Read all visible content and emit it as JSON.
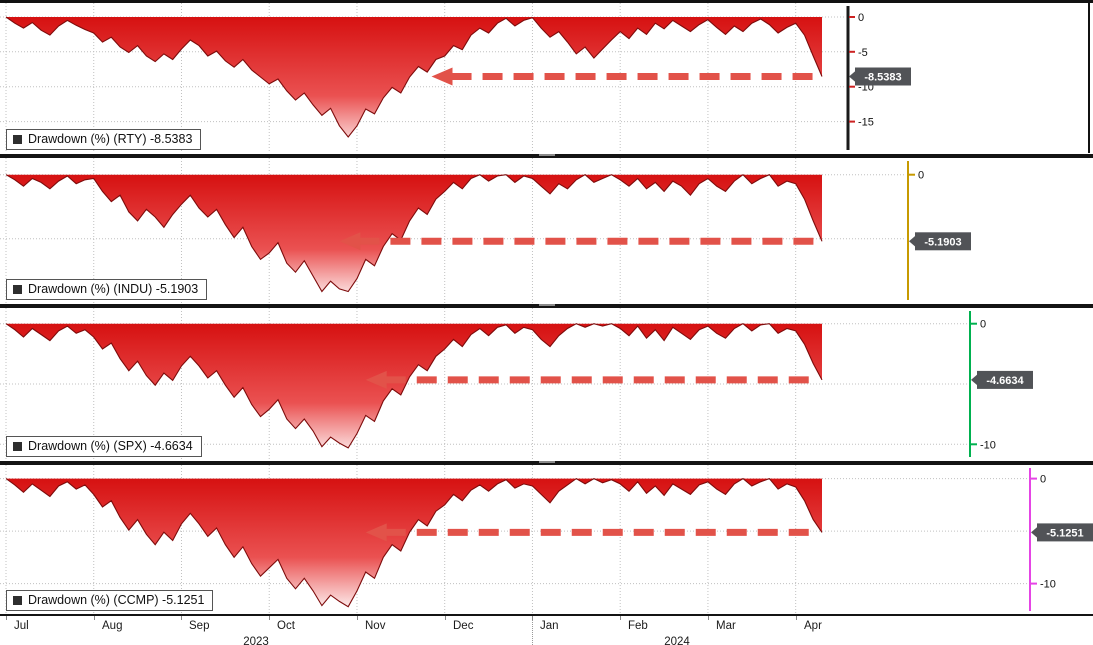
{
  "colors": {
    "area_top": "#d61111",
    "area_mid": "#ea5151",
    "area_bottom": "#ffffff",
    "line": "#7d0b0b",
    "arrow": "#e25249",
    "badge_bg": "#515357",
    "grid": "#c0c0c0"
  },
  "x_axis": {
    "months": [
      "Jul",
      "Aug",
      "Sep",
      "Oct",
      "Nov",
      "Dec",
      "Jan",
      "Feb",
      "Mar",
      "Apr"
    ],
    "years": [
      "2023",
      "2024"
    ]
  },
  "chart_data": [
    {
      "type": "area",
      "series_id": "RTY",
      "legend": "Drawdown (%) (RTY) -8.5383",
      "badge": "-8.5383",
      "last_value": -8.5383,
      "ylim": [
        -19.5,
        2.0
      ],
      "ticks": [
        0,
        -5,
        -10,
        -15
      ],
      "grid": [
        0,
        -5,
        -10,
        -15
      ],
      "axis_color": "#1a1a1a",
      "tick_color": "#cc2222",
      "arrow": {
        "level": -8.5383,
        "from_t": 4.85
      },
      "t_range": [
        0,
        9.3
      ],
      "values": [
        0,
        -0.9,
        -1.6,
        -0.8,
        -1.9,
        -2.6,
        -1.3,
        -0.5,
        -1.2,
        -1.8,
        -2.3,
        -3.6,
        -2.9,
        -4.3,
        -5.1,
        -4.1,
        -5.6,
        -6.4,
        -5.3,
        -6.1,
        -4.6,
        -3.3,
        -4.1,
        -5.6,
        -4.9,
        -6.3,
        -7.2,
        -6.1,
        -7.6,
        -8.6,
        -9.6,
        -8.9,
        -10.6,
        -11.9,
        -10.9,
        -12.6,
        -14.1,
        -13.1,
        -15.6,
        -17.2,
        -15.6,
        -13.2,
        -13.9,
        -11.6,
        -10.1,
        -10.9,
        -8.6,
        -7.1,
        -7.9,
        -6.1,
        -5.6,
        -4.1,
        -4.7,
        -2.6,
        -1.6,
        -2.3,
        -0.9,
        -0.2,
        -1.3,
        -0.5,
        -0.1,
        -1.6,
        -2.9,
        -2.1,
        -3.6,
        -5.3,
        -4.3,
        -5.9,
        -4.6,
        -3.3,
        -2.1,
        -3.1,
        -1.6,
        -2.5,
        -0.9,
        -1.7,
        -0.5,
        -1.3,
        -2.1,
        -1.1,
        -0.4,
        -1.5,
        -2.5,
        -1.3,
        -2.1,
        -0.9,
        -0.3,
        -1.1,
        -2.3,
        -1.5,
        -0.9,
        -2.6,
        -5.6,
        -8.5383
      ]
    },
    {
      "type": "area",
      "series_id": "INDU",
      "legend": "Drawdown (%) (INDU) -5.1903",
      "badge": "-5.1903",
      "last_value": -5.1903,
      "ylim": [
        -10.0,
        1.3
      ],
      "ticks": [
        0
      ],
      "grid": [
        0,
        -5
      ],
      "axis_color": "#C79A00",
      "tick_color": "#C79A00",
      "arrow": {
        "level": -5.1903,
        "from_t": 3.8
      },
      "t_range": [
        0,
        9.3
      ],
      "values": [
        0,
        -0.4,
        -0.9,
        -0.3,
        -0.6,
        -1.1,
        -0.5,
        -0.1,
        -0.7,
        -0.4,
        -0.3,
        -1.3,
        -2.1,
        -1.6,
        -2.9,
        -3.6,
        -2.7,
        -3.3,
        -4.1,
        -3.1,
        -2.3,
        -1.6,
        -2.6,
        -3.3,
        -2.7,
        -3.9,
        -4.9,
        -4.1,
        -5.6,
        -6.6,
        -6.1,
        -5.3,
        -6.9,
        -7.6,
        -6.7,
        -7.9,
        -9.1,
        -8.3,
        -8.9,
        -9.1,
        -8.1,
        -6.6,
        -7.1,
        -5.6,
        -4.6,
        -5.1,
        -3.6,
        -2.6,
        -3.1,
        -1.9,
        -1.3,
        -0.6,
        -1.1,
        -0.3,
        0,
        -0.5,
        -0.1,
        0,
        -0.6,
        -0.1,
        -0.3,
        -0.9,
        -1.5,
        -0.7,
        -1.1,
        -0.4,
        0,
        -0.6,
        -0.3,
        0,
        -0.4,
        -0.9,
        -0.3,
        -1.1,
        -0.6,
        -1.3,
        -0.5,
        -0.9,
        -1.6,
        -0.7,
        -0.3,
        -0.9,
        -1.3,
        -0.5,
        0,
        -0.7,
        -0.3,
        0,
        -0.9,
        -0.5,
        -0.7,
        -1.9,
        -3.6,
        -5.1903
      ]
    },
    {
      "type": "area",
      "series_id": "SPX",
      "legend": "Drawdown (%) (SPX) -4.6634",
      "badge": "-4.6634",
      "last_value": -4.6634,
      "ylim": [
        -11.3,
        1.3
      ],
      "ticks": [
        0,
        -10
      ],
      "grid": [
        0,
        -5,
        -10
      ],
      "axis_color": "#00B14F",
      "tick_color": "#00B14F",
      "arrow": {
        "level": -4.6634,
        "from_t": 4.1
      },
      "t_range": [
        0,
        9.3
      ],
      "values": [
        0,
        -0.5,
        -1.1,
        -0.4,
        -0.9,
        -1.4,
        -0.6,
        -0.2,
        -0.8,
        -0.5,
        -1.1,
        -2.1,
        -1.6,
        -2.9,
        -3.9,
        -3.1,
        -4.3,
        -5.1,
        -4.1,
        -4.7,
        -3.5,
        -2.7,
        -3.5,
        -4.5,
        -3.9,
        -5.1,
        -6.1,
        -5.3,
        -6.7,
        -7.7,
        -7.1,
        -6.3,
        -7.9,
        -8.7,
        -7.9,
        -8.9,
        -10.2,
        -9.4,
        -9.9,
        -10.3,
        -9.1,
        -7.6,
        -8.1,
        -6.4,
        -5.4,
        -5.9,
        -4.4,
        -3.4,
        -3.9,
        -2.7,
        -2.1,
        -1.3,
        -1.9,
        -0.9,
        -0.4,
        -1.0,
        -0.3,
        -0.1,
        -0.8,
        -0.3,
        -0.5,
        -1.3,
        -1.9,
        -1.0,
        -0.4,
        0,
        -0.3,
        0,
        -0.2,
        0,
        -0.4,
        -1.0,
        -0.2,
        -1.2,
        -0.5,
        -1.4,
        -0.3,
        -0.8,
        -1.3,
        -0.5,
        -0.2,
        -0.8,
        -1.2,
        -0.4,
        0,
        -0.6,
        -0.1,
        0,
        -0.8,
        -0.4,
        -0.6,
        -1.7,
        -3.3,
        -4.6634
      ]
    },
    {
      "type": "area",
      "series_id": "CCMP",
      "legend": "Drawdown (%) (CCMP) -5.1251",
      "badge": "-5.1251",
      "last_value": -5.1251,
      "ylim": [
        -12.9,
        1.3
      ],
      "ticks": [
        0,
        -10
      ],
      "grid": [
        0,
        -5,
        -10
      ],
      "axis_color": "#E544E5",
      "tick_color": "#E544E5",
      "arrow": {
        "level": -5.1251,
        "from_t": 4.1
      },
      "t_range": [
        0,
        9.3
      ],
      "values": [
        0,
        -0.6,
        -1.3,
        -0.5,
        -1.1,
        -1.7,
        -0.7,
        -0.3,
        -1.0,
        -0.6,
        -1.5,
        -2.7,
        -2.1,
        -3.7,
        -4.9,
        -3.9,
        -5.3,
        -6.3,
        -5.1,
        -5.9,
        -4.3,
        -3.3,
        -4.3,
        -5.5,
        -4.7,
        -6.3,
        -7.5,
        -6.5,
        -8.1,
        -9.3,
        -8.5,
        -7.7,
        -9.5,
        -10.5,
        -9.5,
        -10.7,
        -12.1,
        -11.1,
        -11.7,
        -12.2,
        -10.7,
        -8.9,
        -9.5,
        -7.5,
        -6.3,
        -6.9,
        -5.1,
        -3.9,
        -4.5,
        -3.1,
        -2.5,
        -1.5,
        -2.1,
        -1.1,
        -0.6,
        -1.2,
        -0.5,
        -0.1,
        -0.9,
        -0.5,
        -0.7,
        -1.5,
        -2.3,
        -1.2,
        -0.6,
        0,
        -0.5,
        0,
        -0.4,
        -0.1,
        -0.5,
        -1.2,
        -0.3,
        -1.4,
        -0.7,
        -1.6,
        -0.5,
        -1.0,
        -1.5,
        -0.6,
        -0.3,
        -1.0,
        -1.5,
        -0.5,
        0,
        -0.7,
        -0.3,
        0,
        -1.0,
        -0.5,
        -0.8,
        -2.1,
        -3.9,
        -5.1251
      ]
    }
  ]
}
